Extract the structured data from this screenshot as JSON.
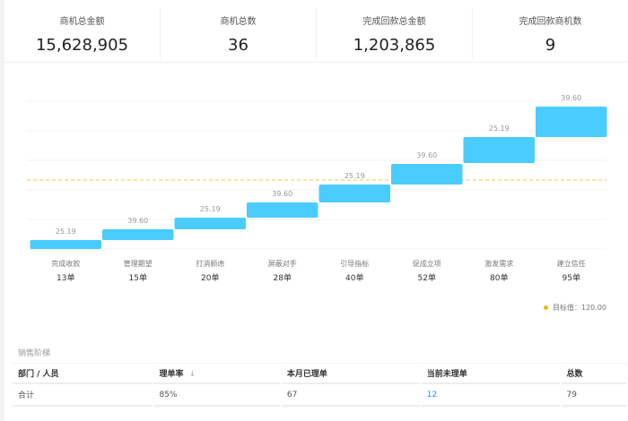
{
  "kpis": [
    {
      "label": "商机总金额",
      "value": "15,628,905"
    },
    {
      "label": "商机总数",
      "value": "36"
    },
    {
      "label": "完成回款总金额",
      "value": "1,203,865"
    },
    {
      "label": "完成回款商机数",
      "value": "9"
    }
  ],
  "chart_data": {
    "type": "bar",
    "variant": "waterfall",
    "categories": [
      "完成收款",
      "管理期望",
      "打消顾虑",
      "屏蔽对手",
      "引导指标",
      "促成立项",
      "激发需求",
      "建立信任"
    ],
    "counts": [
      "13单",
      "15单",
      "20单",
      "28单",
      "40单",
      "52单",
      "80单",
      "95单"
    ],
    "data_labels": [
      "25.19",
      "39.60",
      "25.19",
      "39.60",
      "25.19",
      "39.60",
      "25.19",
      "39.60"
    ],
    "values": [
      25.19,
      39.6,
      25.19,
      39.6,
      25.19,
      39.6,
      25.19,
      39.6
    ],
    "target": {
      "label": "目标值：120.00",
      "value": 120.0,
      "color": "#f7c744"
    },
    "bar_color": "#4accff",
    "grid": true,
    "legend": "bottom-right"
  },
  "section": {
    "title": "销售阶梯"
  },
  "table": {
    "headers": [
      "部门 / 人员",
      "理单率",
      "本月已理单",
      "当前未理单",
      "总数"
    ],
    "sort_icon": "arrow-down-icon",
    "rows": [
      [
        "合计",
        "85%",
        "67",
        "12",
        "79"
      ]
    ]
  }
}
